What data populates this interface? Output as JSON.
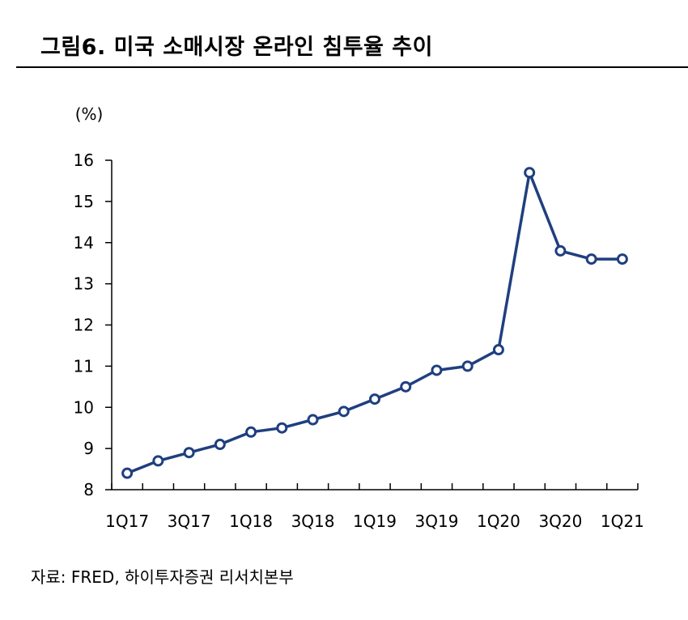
{
  "title": "그림6. 미국 소매시장 온라인 침투율 추이",
  "source": "자료: FRED, 하이투자증권 리서치본부",
  "chart_data": {
    "type": "line",
    "ylabel": "(%)",
    "ylim": [
      8,
      16
    ],
    "yticks": [
      8,
      9,
      10,
      11,
      12,
      13,
      14,
      15,
      16
    ],
    "xticklabels": [
      "1Q17",
      "3Q17",
      "1Q18",
      "3Q18",
      "1Q19",
      "3Q19",
      "1Q20",
      "3Q20",
      "1Q21"
    ],
    "x": [
      "1Q17",
      "2Q17",
      "3Q17",
      "4Q17",
      "1Q18",
      "2Q18",
      "3Q18",
      "4Q18",
      "1Q19",
      "2Q19",
      "3Q19",
      "4Q19",
      "1Q20",
      "2Q20",
      "3Q20",
      "4Q20",
      "1Q21"
    ],
    "values": [
      8.4,
      8.7,
      8.9,
      9.1,
      9.4,
      9.5,
      9.7,
      9.9,
      10.2,
      10.5,
      10.9,
      11.0,
      11.4,
      15.7,
      13.8,
      13.6,
      13.6
    ],
    "line_color": "#1f3f7f",
    "grid": false
  }
}
